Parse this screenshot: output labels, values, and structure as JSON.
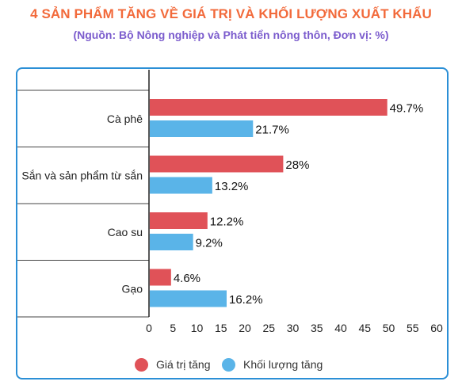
{
  "title": "4 SẢN PHẨM TĂNG VỀ GIÁ TRỊ VÀ KHỐI LƯỢNG XUẤT KHẨU",
  "subtitle": "(Nguồn: Bộ Nông nghiệp và Phát tiển nông thôn, Đơn vị: %)",
  "colors": {
    "title": "#f26a3b",
    "subtitle": "#7b5ccd",
    "border": "#2b8fd6",
    "value_series": "#e05258",
    "volume_series": "#5ab4e8"
  },
  "chart_data": {
    "type": "bar",
    "orientation": "horizontal",
    "title": "4 SẢN PHẨM TĂNG VỀ GIÁ TRỊ VÀ KHỐI LƯỢNG XUẤT KHẨU",
    "subtitle": "(Nguồn: Bộ Nông nghiệp và Phát tiển nông thôn, Đơn vị: %)",
    "categories": [
      "Cà phê",
      "Sắn và sản phẩm từ sắn",
      "Cao su",
      "Gạo"
    ],
    "series": [
      {
        "name": "Giá trị tăng",
        "color": "#e05258",
        "values": [
          49.7,
          28,
          12.2,
          4.6
        ],
        "labels": [
          "49.7%",
          "28%",
          "12.2%",
          "4.6%"
        ]
      },
      {
        "name": "Khối lượng tăng",
        "color": "#5ab4e8",
        "values": [
          21.7,
          13.2,
          9.2,
          16.2
        ],
        "labels": [
          "21.7%",
          "13.2%",
          "9.2%",
          "16.2%"
        ]
      }
    ],
    "xlim": [
      0,
      60
    ],
    "x_ticks": [
      "0",
      "5",
      "10",
      "15",
      "20",
      "25",
      "30",
      "35",
      "40",
      "45",
      "50",
      "55",
      "60"
    ],
    "xlabel": "",
    "ylabel": "",
    "grid": "horizontal separators between categories",
    "legend_position": "bottom-center"
  }
}
